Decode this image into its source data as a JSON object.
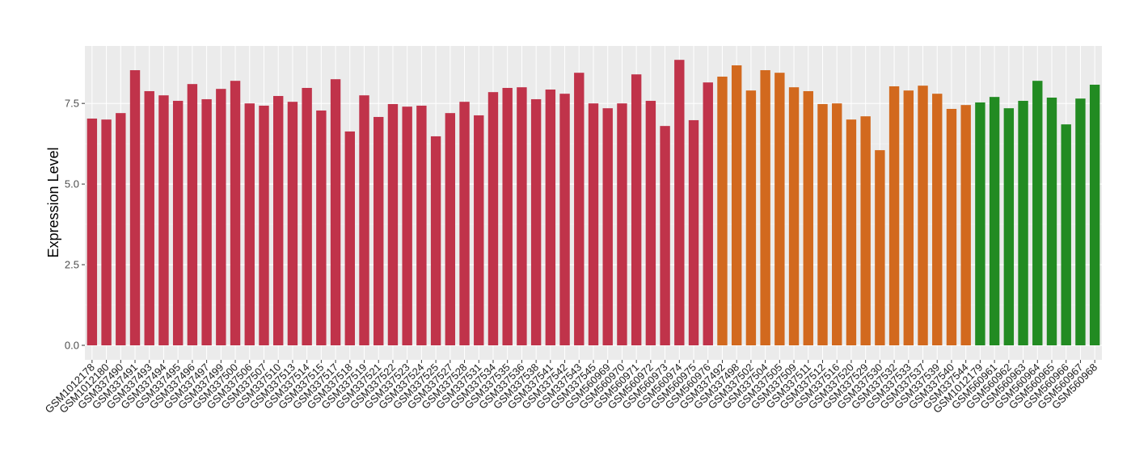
{
  "chart_data": {
    "type": "bar",
    "ylabel": "Expression Level",
    "categories": [
      "GSM1012178",
      "GSM1012180",
      "GSM337490",
      "GSM337491",
      "GSM337493",
      "GSM337494",
      "GSM337495",
      "GSM337496",
      "GSM337497",
      "GSM337499",
      "GSM337500",
      "GSM337506",
      "GSM337507",
      "GSM337510",
      "GSM337513",
      "GSM337514",
      "GSM337515",
      "GSM337517",
      "GSM337518",
      "GSM337519",
      "GSM337521",
      "GSM337522",
      "GSM337523",
      "GSM337524",
      "GSM337525",
      "GSM337527",
      "GSM337528",
      "GSM337531",
      "GSM337534",
      "GSM337535",
      "GSM337536",
      "GSM337538",
      "GSM337541",
      "GSM337542",
      "GSM337543",
      "GSM337545",
      "GSM560969",
      "GSM560970",
      "GSM560971",
      "GSM560972",
      "GSM560973",
      "GSM560974",
      "GSM560975",
      "GSM560976",
      "GSM337492",
      "GSM337498",
      "GSM337502",
      "GSM337504",
      "GSM337505",
      "GSM337509",
      "GSM337511",
      "GSM337512",
      "GSM337516",
      "GSM337520",
      "GSM337529",
      "GSM337530",
      "GSM337532",
      "GSM337533",
      "GSM337537",
      "GSM337539",
      "GSM337540",
      "GSM337544",
      "GSM1012179",
      "GSM560961",
      "GSM560962",
      "GSM560963",
      "GSM560964",
      "GSM560965",
      "GSM560966",
      "GSM560967",
      "GSM560968"
    ],
    "values": [
      7.03,
      7.0,
      7.2,
      8.53,
      7.88,
      7.75,
      7.58,
      8.1,
      7.63,
      7.95,
      8.2,
      7.5,
      7.43,
      7.73,
      7.55,
      7.98,
      7.28,
      8.25,
      6.63,
      7.75,
      7.08,
      7.48,
      7.4,
      7.43,
      6.48,
      7.2,
      7.55,
      7.13,
      7.85,
      7.98,
      8.0,
      7.63,
      7.93,
      7.8,
      8.45,
      7.5,
      7.35,
      7.5,
      8.4,
      7.58,
      6.8,
      8.85,
      6.98,
      8.15,
      8.33,
      8.68,
      7.9,
      8.53,
      8.45,
      8.0,
      7.88,
      7.48,
      7.5,
      7.0,
      7.1,
      6.05,
      8.03,
      7.9,
      8.05,
      7.8,
      7.33,
      7.45,
      7.53,
      7.7,
      7.35,
      7.58,
      8.2,
      7.68,
      6.85,
      7.65,
      8.08
    ],
    "colors": [
      "#c0334a",
      "#c0334a",
      "#c0334a",
      "#c0334a",
      "#c0334a",
      "#c0334a",
      "#c0334a",
      "#c0334a",
      "#c0334a",
      "#c0334a",
      "#c0334a",
      "#c0334a",
      "#c0334a",
      "#c0334a",
      "#c0334a",
      "#c0334a",
      "#c0334a",
      "#c0334a",
      "#c0334a",
      "#c0334a",
      "#c0334a",
      "#c0334a",
      "#c0334a",
      "#c0334a",
      "#c0334a",
      "#c0334a",
      "#c0334a",
      "#c0334a",
      "#c0334a",
      "#c0334a",
      "#c0334a",
      "#c0334a",
      "#c0334a",
      "#c0334a",
      "#c0334a",
      "#c0334a",
      "#c0334a",
      "#c0334a",
      "#c0334a",
      "#c0334a",
      "#c0334a",
      "#c0334a",
      "#c0334a",
      "#c0334a",
      "#d2691e",
      "#d2691e",
      "#d2691e",
      "#d2691e",
      "#d2691e",
      "#d2691e",
      "#d2691e",
      "#d2691e",
      "#d2691e",
      "#d2691e",
      "#d2691e",
      "#d2691e",
      "#d2691e",
      "#d2691e",
      "#d2691e",
      "#d2691e",
      "#d2691e",
      "#d2691e",
      "#228b22",
      "#228b22",
      "#228b22",
      "#228b22",
      "#228b22",
      "#228b22",
      "#228b22",
      "#228b22",
      "#228b22"
    ],
    "ylim": [
      -0.45,
      9.28
    ],
    "yticks": [
      {
        "value": 0,
        "label": "0.0"
      },
      {
        "value": 2.5,
        "label": "2.5"
      },
      {
        "value": 5,
        "label": "5.0"
      },
      {
        "value": 7.5,
        "label": "7.5"
      }
    ],
    "grid": true
  }
}
